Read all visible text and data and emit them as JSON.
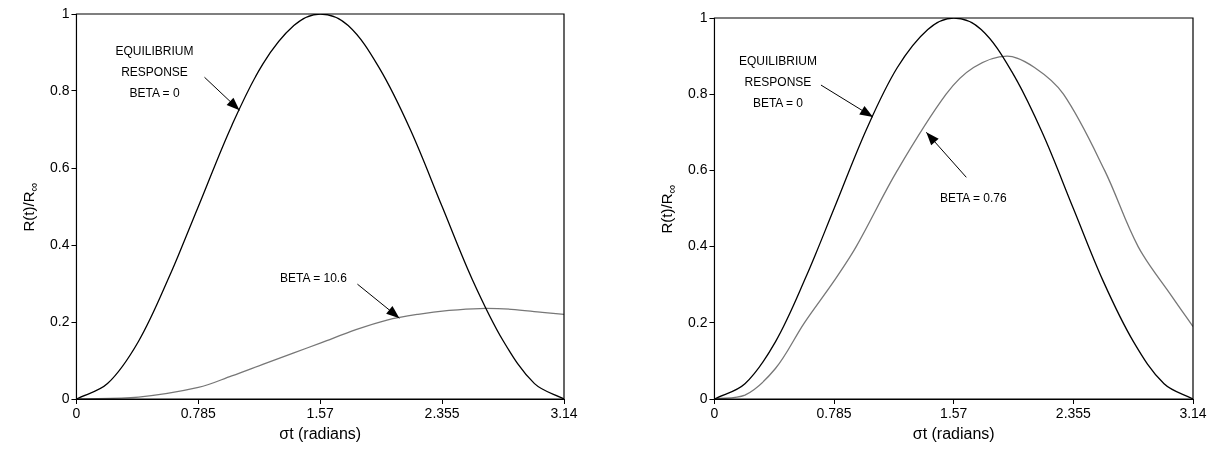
{
  "chart_data": [
    {
      "type": "line",
      "xlabel": "σt (radians)",
      "ylabel": "R(t)/R$_{∞}$",
      "xlim": [
        0,
        3.14
      ],
      "ylim": [
        0,
        1
      ],
      "xticks": [
        0,
        0.785,
        1.57,
        2.355,
        3.14
      ],
      "yticks": [
        0,
        0.2,
        0.4,
        0.6,
        0.8,
        1
      ],
      "grid": false,
      "legend": false,
      "series": [
        {
          "color": "#000000",
          "x": [
            0,
            0.2,
            0.4,
            0.6,
            0.785,
            1.0,
            1.2,
            1.4,
            1.57,
            1.75,
            1.95,
            2.15,
            2.355,
            2.55,
            2.75,
            2.95,
            3.14
          ],
          "values": [
            0,
            0.04,
            0.15,
            0.32,
            0.5,
            0.71,
            0.87,
            0.97,
            1,
            0.97,
            0.86,
            0.7,
            0.5,
            0.31,
            0.15,
            0.04,
            0
          ]
        },
        {
          "color": "#777777",
          "x": [
            0,
            0.4,
            0.785,
            1.0,
            1.2,
            1.4,
            1.57,
            1.8,
            2.0,
            2.2,
            2.4,
            2.6,
            2.8,
            3.0,
            3.14
          ],
          "values": [
            0,
            0.005,
            0.03,
            0.06,
            0.09,
            0.12,
            0.145,
            0.18,
            0.205,
            0.22,
            0.23,
            0.235,
            0.233,
            0.225,
            0.22
          ]
        }
      ],
      "annotations": [
        {
          "text": "EQUILIBRIUM\nRESPONSE\nBETA = 0",
          "x": 1.05,
          "y": 0.75
        },
        {
          "text": "BETA = 10.6",
          "x": 2.08,
          "y": 0.21
        }
      ]
    },
    {
      "type": "line",
      "xlabel": "σt (radians)",
      "ylabel": "R(t)/R$_{∞}$",
      "xlim": [
        0,
        3.14
      ],
      "ylim": [
        0,
        1
      ],
      "xticks": [
        0,
        0.785,
        1.57,
        2.355,
        3.14
      ],
      "yticks": [
        0,
        0.2,
        0.4,
        0.6,
        0.8,
        1
      ],
      "grid": false,
      "legend": false,
      "series": [
        {
          "color": "#000000",
          "x": [
            0,
            0.2,
            0.4,
            0.6,
            0.785,
            1.0,
            1.2,
            1.4,
            1.57,
            1.75,
            1.95,
            2.15,
            2.355,
            2.55,
            2.75,
            2.95,
            3.14
          ],
          "values": [
            0,
            0.04,
            0.15,
            0.32,
            0.5,
            0.71,
            0.87,
            0.97,
            1,
            0.97,
            0.86,
            0.7,
            0.5,
            0.31,
            0.15,
            0.04,
            0
          ]
        },
        {
          "color": "#777777",
          "x": [
            0,
            0.2,
            0.4,
            0.59,
            0.785,
            0.93,
            1.2,
            1.52,
            1.7,
            1.92,
            2.1,
            2.29,
            2.56,
            2.78,
            3.0,
            3.14
          ],
          "values": [
            0,
            0.01,
            0.08,
            0.2,
            0.31,
            0.4,
            0.6,
            0.8,
            0.87,
            0.9,
            0.87,
            0.8,
            0.6,
            0.4,
            0.27,
            0.19
          ]
        }
      ],
      "annotations": [
        {
          "text": "EQUILIBRIUM\nRESPONSE\nBETA = 0",
          "x": 1.04,
          "y": 0.74
        },
        {
          "text": "BETA = 0.76",
          "x": 1.39,
          "y": 0.7
        }
      ]
    }
  ]
}
